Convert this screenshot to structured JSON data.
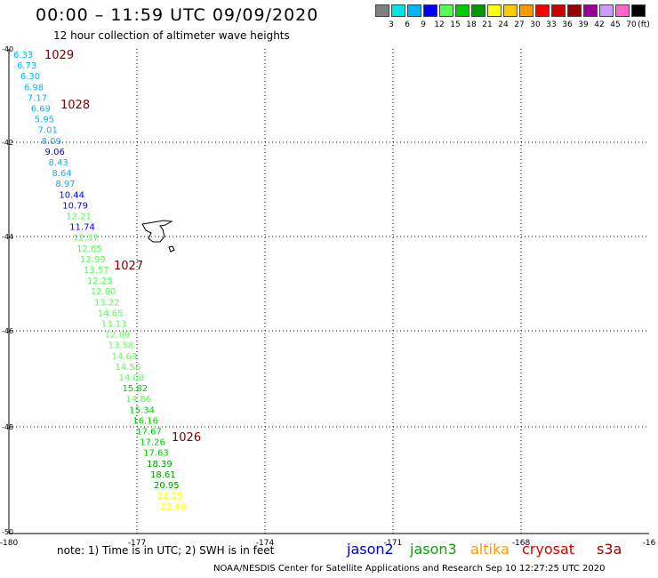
{
  "header": {
    "title": "00:00 – 11:59 UTC 09/09/2020",
    "subtitle": "12 hour collection of altimeter wave heights"
  },
  "legend": {
    "unit": "(ft)",
    "colors": [
      "#808080",
      "#00e5e5",
      "#00b4ff",
      "#0000ff",
      "#55ff55",
      "#00cc00",
      "#009900",
      "#ffff00",
      "#ffcc00",
      "#ff9900",
      "#ff0000",
      "#cc0000",
      "#990000",
      "#990099",
      "#cc99ff",
      "#ff66cc",
      "#000000"
    ],
    "labels": [
      "3",
      "6",
      "9",
      "12",
      "15",
      "18",
      "21",
      "24",
      "27",
      "30",
      "33",
      "36",
      "39",
      "42",
      "45",
      "70"
    ]
  },
  "axes": {
    "lat_labels": [
      "-40",
      "-42",
      "-44",
      "-46",
      "-48",
      "-50"
    ],
    "lon_labels": [
      "-180",
      "-177",
      "-174",
      "-171",
      "-168",
      "-16"
    ]
  },
  "pressure_labels": [
    "1029",
    "1028",
    "1027",
    "1026"
  ],
  "wave_readings": [
    {
      "value": "6.33",
      "color": "#00b4ff"
    },
    {
      "value": "6.73",
      "color": "#00b4ff"
    },
    {
      "value": "6.30",
      "color": "#00b4ff"
    },
    {
      "value": "6.98",
      "color": "#00b4ff"
    },
    {
      "value": "7.17",
      "color": "#00b4ff"
    },
    {
      "value": "6.69",
      "color": "#00b4ff"
    },
    {
      "value": "5.95",
      "color": "#00b4ff"
    },
    {
      "value": "7.01",
      "color": "#00b4ff"
    },
    {
      "value": "8.09",
      "color": "#00b4ff"
    },
    {
      "value": "9.06",
      "color": "#0000ff"
    },
    {
      "value": "8.43",
      "color": "#00b4ff"
    },
    {
      "value": "8.64",
      "color": "#00b4ff"
    },
    {
      "value": "8.97",
      "color": "#00b4ff"
    },
    {
      "value": "10.44",
      "color": "#0000ff"
    },
    {
      "value": "10.79",
      "color": "#0000ff"
    },
    {
      "value": "12.21",
      "color": "#55ff55"
    },
    {
      "value": "11.74",
      "color": "#0000ff"
    },
    {
      "value": "12.37",
      "color": "#55ff55"
    },
    {
      "value": "12.65",
      "color": "#55ff55"
    },
    {
      "value": "12.99",
      "color": "#55ff55"
    },
    {
      "value": "13.57",
      "color": "#55ff55"
    },
    {
      "value": "12.25",
      "color": "#55ff55"
    },
    {
      "value": "12.80",
      "color": "#55ff55"
    },
    {
      "value": "13.22",
      "color": "#55ff55"
    },
    {
      "value": "14.65",
      "color": "#55ff55"
    },
    {
      "value": "13.13",
      "color": "#55ff55"
    },
    {
      "value": "12.89",
      "color": "#55ff55"
    },
    {
      "value": "13.58",
      "color": "#55ff55"
    },
    {
      "value": "14.69",
      "color": "#55ff55"
    },
    {
      "value": "14.56",
      "color": "#55ff55"
    },
    {
      "value": "14.08",
      "color": "#55ff55"
    },
    {
      "value": "15.82",
      "color": "#00cc00"
    },
    {
      "value": "14.86",
      "color": "#55ff55"
    },
    {
      "value": "15.34",
      "color": "#00cc00"
    },
    {
      "value": "16.16",
      "color": "#00cc00"
    },
    {
      "value": "17.67",
      "color": "#00cc00"
    },
    {
      "value": "17.26",
      "color": "#00cc00"
    },
    {
      "value": "17.63",
      "color": "#00cc00"
    },
    {
      "value": "18.39",
      "color": "#009900"
    },
    {
      "value": "18.61",
      "color": "#009900"
    },
    {
      "value": "20.95",
      "color": "#009900"
    },
    {
      "value": "21.25",
      "color": "#ffff00"
    },
    {
      "value": "22.68",
      "color": "#ffff00"
    }
  ],
  "footer": {
    "note": "note:  1) Time is in UTC;  2) SWH is in feet",
    "credit": "NOAA/NESDIS Center for Satellite Applications and Research     Sep 10 12:27:25 UTC 2020"
  },
  "satellites": [
    {
      "name": "jason2",
      "color": "#0000cc"
    },
    {
      "name": "jason3",
      "color": "#00aa00"
    },
    {
      "name": "altika",
      "color": "#ff9900"
    },
    {
      "name": "cryosat",
      "color": "#dd0000"
    },
    {
      "name": "s3a",
      "color": "#990000"
    }
  ]
}
